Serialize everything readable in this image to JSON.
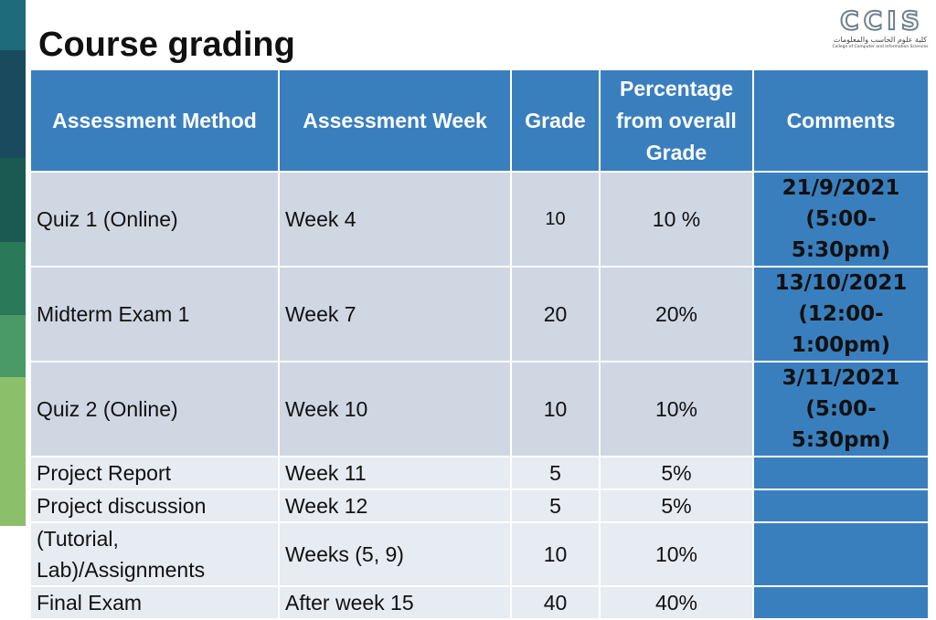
{
  "title": "Course grading",
  "logo": {
    "mark": [
      "C",
      "C",
      "I",
      "S"
    ],
    "arabic": "كلية علوم الحاسب والمعلومات",
    "english": "College of Computer and Information Sciences"
  },
  "colors": {
    "header_bg": "#3a7fbd",
    "row_odd": "#cfd7e3",
    "row_even": "#e7ebf2",
    "sidebar": [
      "#1e6b7b",
      "#1a4a5e",
      "#1b5a52",
      "#2a7a5a",
      "#4a9a68",
      "#8bbf6a"
    ]
  },
  "table": {
    "headers": {
      "method": "Assessment Method",
      "week": "Assessment Week",
      "grade": "Grade",
      "percentage_line1": "Percentage",
      "percentage_line2": "from overall",
      "percentage_line3": "Grade",
      "comments": "Comments"
    },
    "rows": [
      {
        "method": "Quiz 1 (Online)",
        "week": "Week 4",
        "grade": "10",
        "percentage": "10 %",
        "comment_line1": "21/9/2021",
        "comment_line2": "(5:00-5:30pm)"
      },
      {
        "method": "Midterm Exam 1",
        "week": "Week 7",
        "grade": "20",
        "percentage": "20%",
        "comment_line1": "13/10/2021",
        "comment_line2": "(12:00-1:00pm)"
      },
      {
        "method": "Quiz 2 (Online)",
        "week": "Week 10",
        "grade": "10",
        "percentage": "10%",
        "comment_line1": "3/11/2021",
        "comment_line2": "(5:00-5:30pm)"
      },
      {
        "method": "Project Report",
        "week": "Week 11",
        "grade": "5",
        "percentage": "5%"
      },
      {
        "method": "Project discussion",
        "week": "Week 12",
        "grade": "5",
        "percentage": "5%"
      },
      {
        "method_line1": "(Tutorial,",
        "method_line2": "Lab)/Assignments",
        "week": "Weeks (5, 9)",
        "grade": "10",
        "percentage": "10%"
      },
      {
        "method": "Final Exam",
        "week": "After week 15",
        "grade": "40",
        "percentage": "40%"
      }
    ]
  }
}
